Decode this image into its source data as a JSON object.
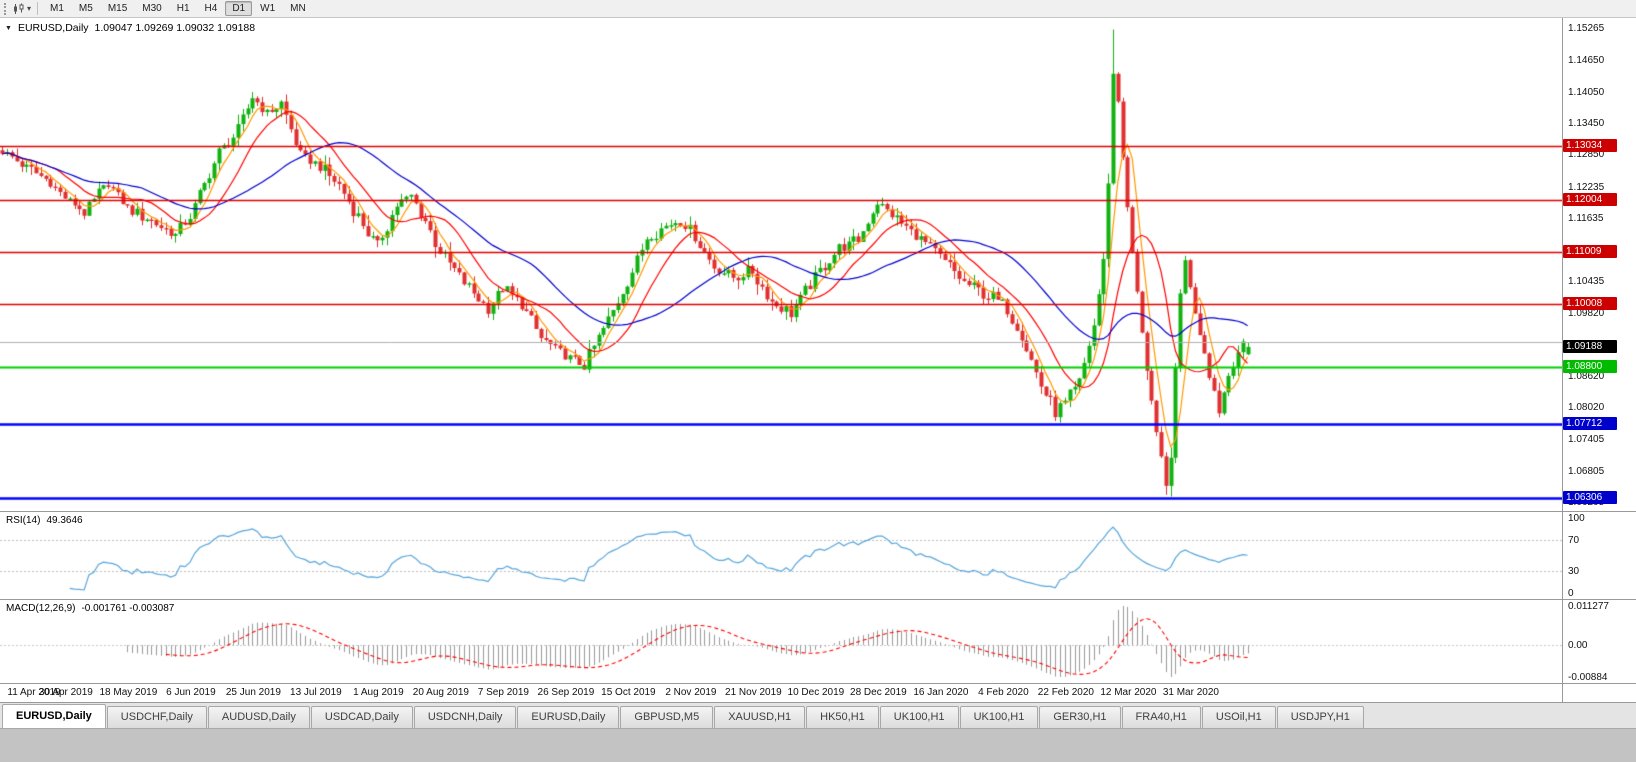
{
  "icons": {
    "title_marker": "▼",
    "dropdown_caret": "▾"
  },
  "toolbar": {
    "timeframes": [
      "M1",
      "M5",
      "M15",
      "M30",
      "H1",
      "H4",
      "D1",
      "W1",
      "MN"
    ],
    "active_timeframe": "D1"
  },
  "chart": {
    "symbol_label": "EURUSD,Daily",
    "ohlc_text": "1.09047 1.09269 1.09032 1.09188",
    "current_price": {
      "price": 1.09188,
      "label": "1.09188",
      "color": "#000000"
    },
    "y_ticks": [
      1.15265,
      1.1465,
      1.1405,
      1.1345,
      1.1285,
      1.12235,
      1.11635,
      1.10435,
      1.0982,
      1.0862,
      1.0802,
      1.07405,
      1.06805,
      1.06205
    ],
    "hlines": [
      {
        "price": 1.13034,
        "label": "1.13034",
        "color": "#dd0000",
        "badge": "#cc0000",
        "width": 1.4
      },
      {
        "price": 1.12004,
        "label": "1.12004",
        "color": "#dd0000",
        "badge": "#cc0000",
        "width": 1.4
      },
      {
        "price": 1.11009,
        "label": "1.11009",
        "color": "#dd0000",
        "badge": "#cc0000",
        "width": 1.4
      },
      {
        "price": 1.10008,
        "label": "1.10008",
        "color": "#dd0000",
        "badge": "#cc0000",
        "width": 1.4
      },
      {
        "price": 1.0928,
        "label": null,
        "color": "#b0b0b0",
        "badge": null,
        "width": 1
      },
      {
        "price": 1.088,
        "label": "1.08800",
        "color": "#00d000",
        "badge": "#00bb00",
        "width": 2
      },
      {
        "price": 1.07712,
        "label": "1.07712",
        "color": "#0000ff",
        "badge": "#0000cc",
        "width": 2.6
      },
      {
        "price": 1.06306,
        "label": "1.06306",
        "color": "#0000ff",
        "badge": "#0000cc",
        "width": 2.6
      }
    ],
    "dates": [
      "11 Apr 2019",
      "30 Apr 2019",
      "18 May 2019",
      "6 Jun 2019",
      "25 Jun 2019",
      "13 Jul 2019",
      "1 Aug 2019",
      "20 Aug 2019",
      "7 Sep 2019",
      "26 Sep 2019",
      "15 Oct 2019",
      "2 Nov 2019",
      "21 Nov 2019",
      "10 Dec 2019",
      "28 Dec 2019",
      "16 Jan 2020",
      "4 Feb 2020",
      "22 Feb 2020",
      "12 Mar 2020",
      "31 Mar 2020"
    ]
  },
  "rsi": {
    "name": "RSI(14)",
    "value": "49.3646",
    "period": 14,
    "ticks": [
      100,
      70,
      30,
      0
    ],
    "levels": [
      70,
      30
    ],
    "line_color": "#58a6dc"
  },
  "macd": {
    "name": "MACD(12,26,9)",
    "values": "-0.001761 -0.003087",
    "tick_labels": [
      "0.011277",
      "0.00",
      "-0.00884"
    ]
  },
  "tabs": [
    {
      "label": "EURUSD,Daily",
      "active": true
    },
    {
      "label": "USDCHF,Daily",
      "active": false
    },
    {
      "label": "AUDUSD,Daily",
      "active": false
    },
    {
      "label": "USDCAD,Daily",
      "active": false
    },
    {
      "label": "USDCNH,Daily",
      "active": false
    },
    {
      "label": "EURUSD,Daily",
      "active": false
    },
    {
      "label": "GBPUSD,M5",
      "active": false
    },
    {
      "label": "XAUUSD,H1",
      "active": false
    },
    {
      "label": "HK50,H1",
      "active": false
    },
    {
      "label": "UK100,H1",
      "active": false
    },
    {
      "label": "UK100,H1",
      "active": false
    },
    {
      "label": "GER30,H1",
      "active": false
    },
    {
      "label": "FRA40,H1",
      "active": false
    },
    {
      "label": "USOil,H1",
      "active": false
    },
    {
      "label": "USDJPY,H1",
      "active": false
    }
  ],
  "chart_data": {
    "type": "candlestick",
    "symbol": "EURUSD",
    "timeframe": "Daily",
    "title": "EURUSD,Daily 1.09047 1.09269 1.09032 1.09188",
    "x_range": [
      "11 Apr 2019",
      "Apr 2020"
    ],
    "y_range": [
      1.0605,
      1.1548
    ],
    "candle_count": 260,
    "colors": {
      "up": "#12b212",
      "down": "#e03030"
    },
    "last_candle": {
      "open": 1.09047,
      "high": 1.09269,
      "low": 1.09032,
      "close": 1.09188
    },
    "close_path": [
      [
        0,
        1.1295
      ],
      [
        5,
        1.1262
      ],
      [
        9,
        1.124
      ],
      [
        13,
        1.1205
      ],
      [
        17,
        1.1178
      ],
      [
        22,
        1.1232
      ],
      [
        26,
        1.1185
      ],
      [
        31,
        1.116
      ],
      [
        36,
        1.1132
      ],
      [
        39,
        1.117
      ],
      [
        45,
        1.129
      ],
      [
        49,
        1.133
      ],
      [
        52,
        1.1398
      ],
      [
        55,
        1.1365
      ],
      [
        58,
        1.1385
      ],
      [
        62,
        1.1285
      ],
      [
        65,
        1.127
      ],
      [
        70,
        1.1228
      ],
      [
        75,
        1.1152
      ],
      [
        78,
        1.1112
      ],
      [
        82,
        1.119
      ],
      [
        85,
        1.1208
      ],
      [
        88,
        1.116
      ],
      [
        91,
        1.11
      ],
      [
        96,
        1.1042
      ],
      [
        101,
        1.0992
      ],
      [
        104,
        1.103
      ],
      [
        108,
        1.1
      ],
      [
        112,
        1.0935
      ],
      [
        117,
        1.0902
      ],
      [
        121,
        1.0885
      ],
      [
        125,
        1.0952
      ],
      [
        130,
        1.1042
      ],
      [
        134,
        1.1128
      ],
      [
        138,
        1.115
      ],
      [
        141,
        1.1163
      ],
      [
        144,
        1.1128
      ],
      [
        148,
        1.1072
      ],
      [
        152,
        1.1052
      ],
      [
        156,
        1.1062
      ],
      [
        160,
        1.1005
      ],
      [
        164,
        1.0985
      ],
      [
        169,
        1.1052
      ],
      [
        174,
        1.1108
      ],
      [
        178,
        1.1122
      ],
      [
        182,
        1.1196
      ],
      [
        186,
        1.1162
      ],
      [
        190,
        1.1132
      ],
      [
        195,
        1.1092
      ],
      [
        200,
        1.1042
      ],
      [
        204,
        1.1022
      ],
      [
        208,
        1.1002
      ],
      [
        212,
        1.0942
      ],
      [
        216,
        1.0845
      ],
      [
        219,
        1.0792
      ],
      [
        221,
        1.0812
      ],
      [
        224,
        1.085
      ],
      [
        227,
        1.096
      ],
      [
        229,
        1.108
      ],
      [
        230,
        1.124
      ],
      [
        231,
        1.144
      ],
      [
        232,
        1.139
      ],
      [
        234,
        1.118
      ],
      [
        236,
        1.102
      ],
      [
        238,
        1.088
      ],
      [
        240,
        1.075
      ],
      [
        242,
        1.0648
      ],
      [
        243,
        1.072
      ],
      [
        244,
        1.087
      ],
      [
        245,
        1.102
      ],
      [
        246,
        1.109
      ],
      [
        247,
        1.103
      ],
      [
        249,
        1.095
      ],
      [
        251,
        1.087
      ],
      [
        253,
        1.08
      ],
      [
        255,
        1.0865
      ],
      [
        257,
        1.0912
      ],
      [
        259,
        1.09188
      ]
    ],
    "wick_overrides": [
      {
        "i": 231,
        "high": 1.1526
      },
      {
        "i": 242,
        "low": 1.0636
      },
      {
        "i": 219,
        "low": 1.0777
      },
      {
        "i": 121,
        "low": 1.0879
      },
      {
        "i": 259,
        "open": 1.09047,
        "high": 1.09269,
        "low": 1.09032,
        "close": 1.09188
      }
    ],
    "moving_averages": [
      {
        "period": 5,
        "color": "#ff9900"
      },
      {
        "period": 12,
        "color": "#ff0000"
      },
      {
        "period": 30,
        "color": "#0000cd"
      }
    ],
    "support_resistance_levels": [
      1.13034,
      1.12004,
      1.11009,
      1.10008,
      1.088,
      1.07712,
      1.06306
    ],
    "indicators": {
      "rsi": {
        "period": 14,
        "last": 49.3646
      },
      "macd": {
        "fast": 12,
        "slow": 26,
        "signal": 9,
        "last_macd": -0.001761,
        "last_signal": -0.003087,
        "visible_max": 0.011277,
        "visible_min": -0.00884
      }
    }
  }
}
